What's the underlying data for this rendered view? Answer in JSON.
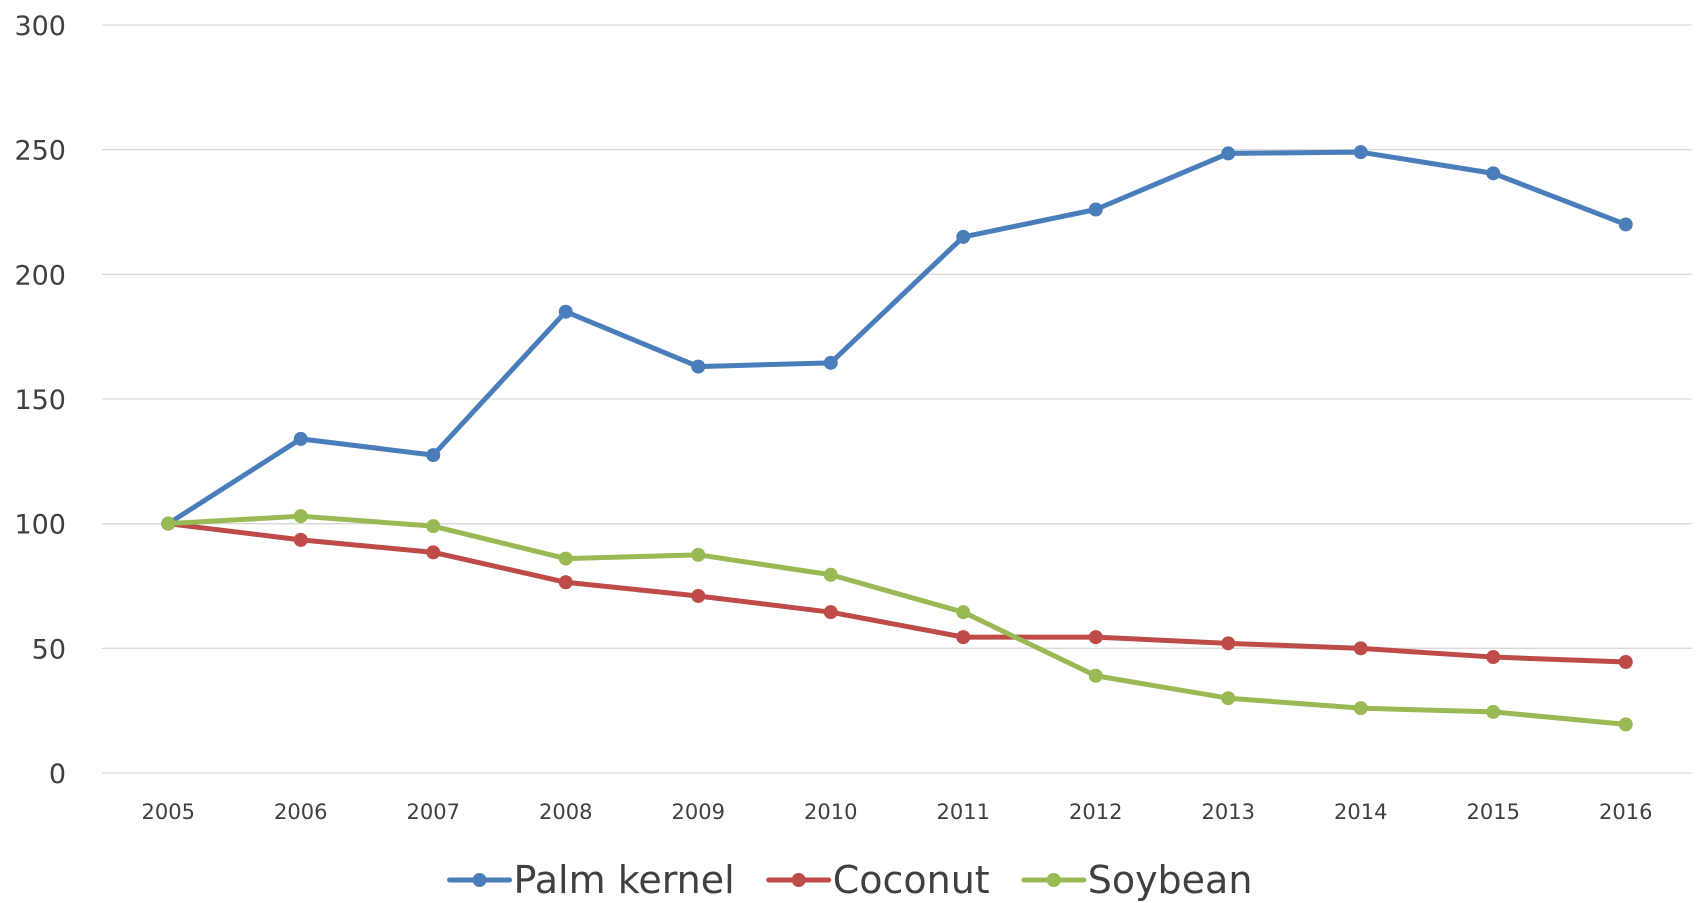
{
  "chart_data": {
    "type": "line",
    "title": "",
    "xlabel": "",
    "ylabel": "",
    "x": [
      "2005",
      "2006",
      "2007",
      "2008",
      "2009",
      "2010",
      "2011",
      "2012",
      "2013",
      "2014",
      "2015",
      "2016"
    ],
    "yticks": [
      "0",
      "50",
      "100",
      "150",
      "200",
      "250",
      "300"
    ],
    "ylim": [
      0,
      300
    ],
    "grid": true,
    "legend_position": "bottom",
    "series": [
      {
        "name": "Palm kernel",
        "color": "#4a7ebb",
        "values": [
          100,
          134,
          127.5,
          185,
          163,
          164.5,
          215,
          226,
          248.5,
          249,
          240.5,
          220
        ]
      },
      {
        "name": "Coconut",
        "color": "#be4b48",
        "values": [
          100,
          93.5,
          88.5,
          76.5,
          71,
          64.5,
          54.5,
          54.5,
          52,
          50,
          46.5,
          44.5
        ]
      },
      {
        "name": "Soybean",
        "color": "#98b954",
        "values": [
          100,
          103,
          99,
          86,
          87.5,
          79.5,
          64.5,
          39,
          30,
          26,
          24.5,
          19.5
        ]
      }
    ]
  }
}
